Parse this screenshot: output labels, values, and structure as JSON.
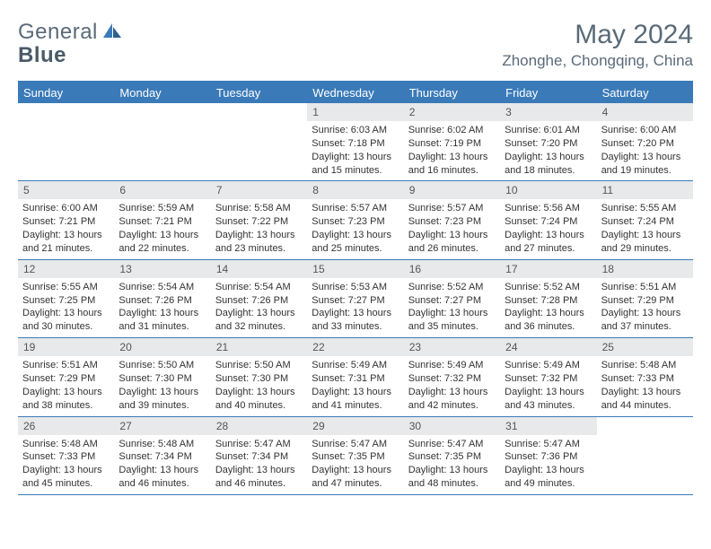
{
  "brand": {
    "part1": "General",
    "part2": "Blue"
  },
  "title": "May 2024",
  "location": "Zhonghe, Chongqing, China",
  "colors": {
    "header_bg": "#3a7ab8",
    "header_text": "#ffffff",
    "daynum_bg": "#e8e9ea",
    "text_muted": "#5a6a78"
  },
  "dayHeaders": [
    "Sunday",
    "Monday",
    "Tuesday",
    "Wednesday",
    "Thursday",
    "Friday",
    "Saturday"
  ],
  "weeks": [
    [
      {
        "n": "",
        "sr": "",
        "ss": "",
        "dl": ""
      },
      {
        "n": "",
        "sr": "",
        "ss": "",
        "dl": ""
      },
      {
        "n": "",
        "sr": "",
        "ss": "",
        "dl": ""
      },
      {
        "n": "1",
        "sr": "6:03 AM",
        "ss": "7:18 PM",
        "dl": "13 hours and 15 minutes."
      },
      {
        "n": "2",
        "sr": "6:02 AM",
        "ss": "7:19 PM",
        "dl": "13 hours and 16 minutes."
      },
      {
        "n": "3",
        "sr": "6:01 AM",
        "ss": "7:20 PM",
        "dl": "13 hours and 18 minutes."
      },
      {
        "n": "4",
        "sr": "6:00 AM",
        "ss": "7:20 PM",
        "dl": "13 hours and 19 minutes."
      }
    ],
    [
      {
        "n": "5",
        "sr": "6:00 AM",
        "ss": "7:21 PM",
        "dl": "13 hours and 21 minutes."
      },
      {
        "n": "6",
        "sr": "5:59 AM",
        "ss": "7:21 PM",
        "dl": "13 hours and 22 minutes."
      },
      {
        "n": "7",
        "sr": "5:58 AM",
        "ss": "7:22 PM",
        "dl": "13 hours and 23 minutes."
      },
      {
        "n": "8",
        "sr": "5:57 AM",
        "ss": "7:23 PM",
        "dl": "13 hours and 25 minutes."
      },
      {
        "n": "9",
        "sr": "5:57 AM",
        "ss": "7:23 PM",
        "dl": "13 hours and 26 minutes."
      },
      {
        "n": "10",
        "sr": "5:56 AM",
        "ss": "7:24 PM",
        "dl": "13 hours and 27 minutes."
      },
      {
        "n": "11",
        "sr": "5:55 AM",
        "ss": "7:24 PM",
        "dl": "13 hours and 29 minutes."
      }
    ],
    [
      {
        "n": "12",
        "sr": "5:55 AM",
        "ss": "7:25 PM",
        "dl": "13 hours and 30 minutes."
      },
      {
        "n": "13",
        "sr": "5:54 AM",
        "ss": "7:26 PM",
        "dl": "13 hours and 31 minutes."
      },
      {
        "n": "14",
        "sr": "5:54 AM",
        "ss": "7:26 PM",
        "dl": "13 hours and 32 minutes."
      },
      {
        "n": "15",
        "sr": "5:53 AM",
        "ss": "7:27 PM",
        "dl": "13 hours and 33 minutes."
      },
      {
        "n": "16",
        "sr": "5:52 AM",
        "ss": "7:27 PM",
        "dl": "13 hours and 35 minutes."
      },
      {
        "n": "17",
        "sr": "5:52 AM",
        "ss": "7:28 PM",
        "dl": "13 hours and 36 minutes."
      },
      {
        "n": "18",
        "sr": "5:51 AM",
        "ss": "7:29 PM",
        "dl": "13 hours and 37 minutes."
      }
    ],
    [
      {
        "n": "19",
        "sr": "5:51 AM",
        "ss": "7:29 PM",
        "dl": "13 hours and 38 minutes."
      },
      {
        "n": "20",
        "sr": "5:50 AM",
        "ss": "7:30 PM",
        "dl": "13 hours and 39 minutes."
      },
      {
        "n": "21",
        "sr": "5:50 AM",
        "ss": "7:30 PM",
        "dl": "13 hours and 40 minutes."
      },
      {
        "n": "22",
        "sr": "5:49 AM",
        "ss": "7:31 PM",
        "dl": "13 hours and 41 minutes."
      },
      {
        "n": "23",
        "sr": "5:49 AM",
        "ss": "7:32 PM",
        "dl": "13 hours and 42 minutes."
      },
      {
        "n": "24",
        "sr": "5:49 AM",
        "ss": "7:32 PM",
        "dl": "13 hours and 43 minutes."
      },
      {
        "n": "25",
        "sr": "5:48 AM",
        "ss": "7:33 PM",
        "dl": "13 hours and 44 minutes."
      }
    ],
    [
      {
        "n": "26",
        "sr": "5:48 AM",
        "ss": "7:33 PM",
        "dl": "13 hours and 45 minutes."
      },
      {
        "n": "27",
        "sr": "5:48 AM",
        "ss": "7:34 PM",
        "dl": "13 hours and 46 minutes."
      },
      {
        "n": "28",
        "sr": "5:47 AM",
        "ss": "7:34 PM",
        "dl": "13 hours and 46 minutes."
      },
      {
        "n": "29",
        "sr": "5:47 AM",
        "ss": "7:35 PM",
        "dl": "13 hours and 47 minutes."
      },
      {
        "n": "30",
        "sr": "5:47 AM",
        "ss": "7:35 PM",
        "dl": "13 hours and 48 minutes."
      },
      {
        "n": "31",
        "sr": "5:47 AM",
        "ss": "7:36 PM",
        "dl": "13 hours and 49 minutes."
      },
      {
        "n": "",
        "sr": "",
        "ss": "",
        "dl": ""
      }
    ]
  ],
  "labels": {
    "sunrise": "Sunrise:",
    "sunset": "Sunset:",
    "daylight": "Daylight:"
  }
}
